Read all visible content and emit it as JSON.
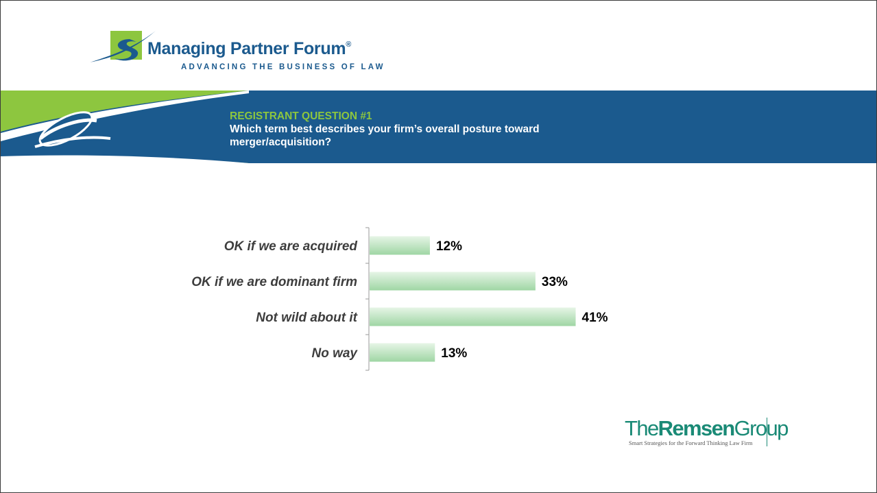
{
  "header": {
    "org_name": "Managing Partner Forum",
    "org_reg": "®",
    "tagline": "ADVANCING THE BUSINESS OF LAW"
  },
  "banner": {
    "question_label": "REGISTRANT QUESTION #1",
    "question_text": "Which term best describes your firm’s overall posture toward merger/acquisition?"
  },
  "footer": {
    "brand_the": "The",
    "brand_remsen": "Remsen",
    "brand_group": "Group",
    "brand_tagline": "Smart Strategies for the Forward Thinking Law Firm"
  },
  "colors": {
    "navy": "#1b5a8e",
    "green": "#8dc63f",
    "bar_top": "#e6f5e6",
    "bar_bottom": "#9fd6a4",
    "teal": "#1a8a76"
  },
  "icons": [
    "swoosh-logo-icon",
    "banner-swoosh-icon"
  ],
  "chart_data": {
    "type": "bar",
    "orientation": "horizontal",
    "categories": [
      "OK if we are acquired",
      "OK if we are dominant firm",
      "Not wild about it",
      "No way"
    ],
    "values": [
      12,
      33,
      41,
      13
    ],
    "value_labels": [
      "12%",
      "33%",
      "41%",
      "13%"
    ],
    "title": "",
    "xlabel": "",
    "ylabel": "",
    "xlim": [
      0,
      100
    ],
    "grid": false,
    "legend": "none"
  }
}
